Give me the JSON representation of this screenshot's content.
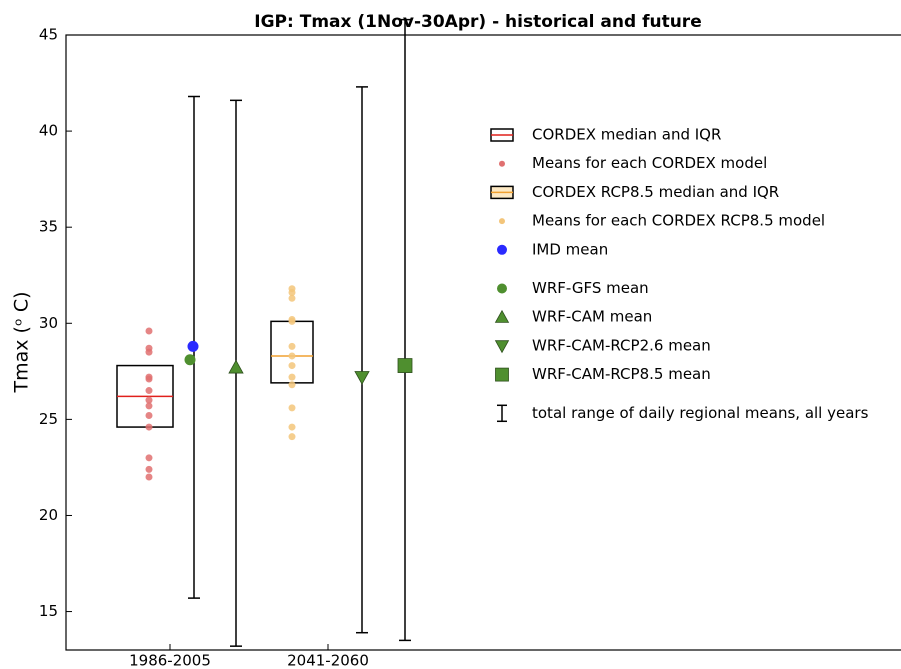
{
  "chart_data": {
    "type": "box",
    "title": "IGP: Tmax (1Nov-30Apr) - historical and future",
    "ylabel": "Tmax (ᵒ C)",
    "categories": [
      "1986-2005",
      "2041-2060"
    ],
    "ylim": [
      13,
      45
    ],
    "yticks": [
      15,
      20,
      25,
      30,
      35,
      40,
      45
    ],
    "boxes": [
      {
        "name": "CORDEX median and IQR",
        "color": "#e0201c",
        "fill": "#ffffff",
        "q1": [
          24.6,
          null
        ],
        "median": [
          26.2,
          null
        ],
        "q3": [
          27.8,
          null
        ]
      },
      {
        "name": "CORDEX RCP8.5 median and IQR",
        "color": "#f0a030",
        "fill": "#ffffff",
        "q1": [
          null,
          26.9
        ],
        "median": [
          null,
          28.3
        ],
        "q3": [
          null,
          30.1
        ]
      }
    ],
    "points": [
      {
        "name": "Means for each CORDEX model",
        "color": "#e07070",
        "values": [
          [
            29.6,
            28.7,
            28.5,
            27.2,
            27.1,
            26.5,
            26.0,
            25.7,
            25.2,
            24.6,
            23.0,
            22.4,
            22.0
          ],
          null
        ]
      },
      {
        "name": "Means for each CORDEX RCP8.5 model",
        "color": "#f3c57a",
        "values": [
          null,
          [
            31.8,
            31.6,
            31.3,
            30.2,
            30.1,
            28.8,
            28.3,
            27.8,
            27.2,
            26.8,
            25.6,
            24.6,
            24.1
          ]
        ]
      }
    ],
    "series": [
      {
        "name": "IMD mean",
        "color": "#2a2aff",
        "marker": "circle",
        "values": [
          28.8,
          null
        ]
      },
      {
        "name": "WRF-GFS mean",
        "color": "#4f8f2f",
        "marker": "circle",
        "values": [
          28.1,
          null
        ]
      },
      {
        "name": "WRF-CAM mean",
        "color": "#4f8f2f",
        "marker": "triangle-up",
        "values": [
          27.7,
          null
        ]
      },
      {
        "name": "WRF-CAM-RCP2.6 mean",
        "color": "#4f8f2f",
        "marker": "triangle-down",
        "values": [
          null,
          27.2
        ]
      },
      {
        "name": "WRF-CAM-RCP8.5 mean",
        "color": "#4f8f2f",
        "marker": "square",
        "values": [
          null,
          27.8
        ]
      }
    ],
    "range": {
      "name": "total range of daily regional means, all years",
      "color": "#000000",
      "low": [
        [
          15.7,
          13.2
        ],
        [
          13.9,
          13.5
        ]
      ],
      "high": [
        [
          41.8,
          41.6
        ],
        [
          42.3,
          45.8
        ]
      ]
    }
  }
}
